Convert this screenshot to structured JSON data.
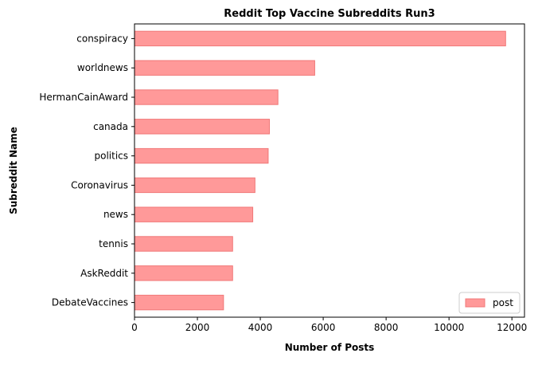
{
  "chart_data": {
    "type": "bar",
    "orientation": "horizontal",
    "title": "Reddit Top Vaccine Subreddits Run3",
    "xlabel": "Number of Posts",
    "ylabel": "Subreddit Name",
    "categories": [
      "conspiracy",
      "worldnews",
      "HermanCainAward",
      "canada",
      "politics",
      "Coronavirus",
      "news",
      "tennis",
      "AskReddit",
      "DebateVaccines"
    ],
    "series": [
      {
        "name": "post",
        "values": [
          11800,
          5730,
          4560,
          4290,
          4250,
          3830,
          3760,
          3120,
          3120,
          2830
        ]
      }
    ],
    "xlim": [
      0,
      12400
    ],
    "xticks": [
      "0",
      "2000",
      "4000",
      "6000",
      "8000",
      "10000",
      "12000"
    ],
    "xtick_values": [
      0,
      2000,
      4000,
      6000,
      8000,
      10000,
      12000
    ],
    "grid": false,
    "legend_position": "lower-right",
    "bar_color": "#ff9999",
    "bar_edge_color": "#f07878"
  }
}
